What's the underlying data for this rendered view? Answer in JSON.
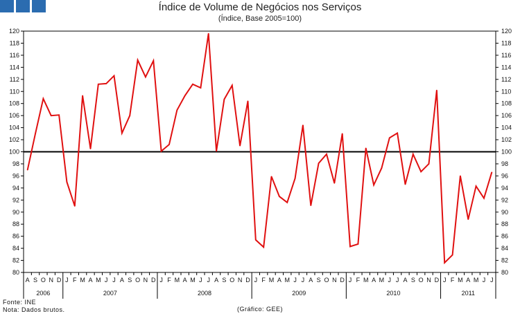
{
  "header": {
    "logo_colors": [
      "#2b6cb0",
      "#2b6cb0",
      "#2b6cb0"
    ]
  },
  "chart_data": {
    "type": "line",
    "title": "Índice de Volume de Negócios nos Serviços",
    "subtitle": "(Índice, Base 2005=100)",
    "ylim": [
      80,
      120
    ],
    "yticks": [
      80,
      82,
      84,
      86,
      88,
      90,
      92,
      94,
      96,
      98,
      100,
      102,
      104,
      106,
      108,
      110,
      112,
      114,
      116,
      118,
      120
    ],
    "reference_line": 100,
    "line_color": "#e01010",
    "month_labels": [
      "A",
      "S",
      "O",
      "N",
      "D",
      "J",
      "F",
      "M",
      "A",
      "M",
      "J",
      "J",
      "A",
      "S",
      "O",
      "N",
      "D",
      "J",
      "F",
      "M",
      "A",
      "M",
      "J",
      "J",
      "A",
      "S",
      "O",
      "N",
      "D",
      "J",
      "F",
      "M",
      "A",
      "M",
      "J",
      "J",
      "A",
      "S",
      "O",
      "N",
      "D",
      "J",
      "F",
      "M",
      "A",
      "M",
      "J",
      "J",
      "A",
      "S",
      "O",
      "N",
      "D",
      "J",
      "F",
      "M",
      "A",
      "M",
      "J",
      "J"
    ],
    "years": [
      {
        "label": "2006",
        "start": 0,
        "count": 5
      },
      {
        "label": "2007",
        "start": 5,
        "count": 12
      },
      {
        "label": "2008",
        "start": 17,
        "count": 12
      },
      {
        "label": "2009",
        "start": 29,
        "count": 12
      },
      {
        "label": "2010",
        "start": 41,
        "count": 12
      },
      {
        "label": "2011",
        "start": 53,
        "count": 7
      }
    ],
    "values": [
      97.0,
      103.0,
      108.8,
      106.0,
      106.1,
      95.0,
      91.0,
      109.3,
      100.5,
      111.2,
      111.3,
      112.6,
      103.1,
      106.0,
      115.2,
      112.4,
      115.1,
      100.1,
      101.2,
      106.9,
      109.3,
      111.2,
      110.6,
      119.6,
      100.1,
      108.7,
      111.0,
      101.0,
      108.4,
      85.4,
      84.2,
      95.9,
      92.6,
      91.6,
      95.6,
      104.4,
      91.1,
      98.1,
      99.6,
      94.8,
      103.0,
      84.3,
      84.7,
      100.6,
      94.5,
      97.3,
      102.3,
      103.1,
      94.6,
      99.6,
      96.7,
      98.0,
      110.2,
      81.6,
      82.9,
      96.0,
      88.8,
      94.3,
      92.3,
      96.6
    ]
  },
  "footer": {
    "source": "Fonte: INE",
    "note": "Nota: Dados brutos.",
    "credit": "(Gráfico: GEE)"
  }
}
